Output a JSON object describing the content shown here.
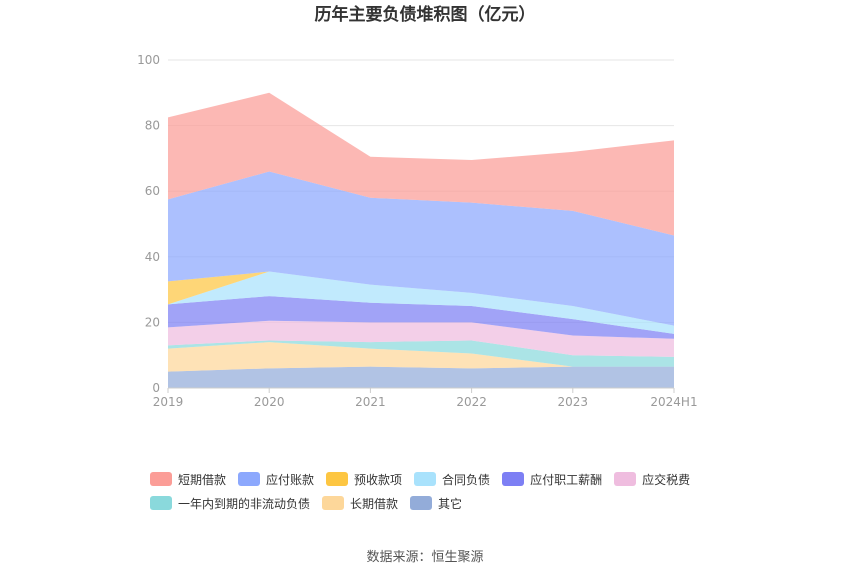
{
  "title": "历年主要负债堆积图（亿元）",
  "source": "数据来源：恒生聚源",
  "chart_data": {
    "type": "area",
    "stacked": true,
    "title": "历年主要负债堆积图（亿元）",
    "categories": [
      "2019",
      "2020",
      "2021",
      "2022",
      "2023",
      "2024H1"
    ],
    "ylim": [
      0,
      100
    ],
    "yticks": [
      0,
      20,
      40,
      60,
      80,
      100
    ],
    "grid": true,
    "legend_position": "bottom",
    "series": [
      {
        "name": "短期借款",
        "color": "#fb9d97",
        "values": [
          25,
          24,
          12.5,
          13,
          18,
          29
        ]
      },
      {
        "name": "应付账款",
        "color": "#8ca8fd",
        "values": [
          25,
          30.5,
          26.5,
          27.5,
          29,
          27.5
        ]
      },
      {
        "name": "预收款项",
        "color": "#fdc642",
        "values": [
          7,
          0,
          0,
          0,
          0,
          0
        ]
      },
      {
        "name": "合同负债",
        "color": "#a9e2fc",
        "values": [
          0,
          7.5,
          5.5,
          4,
          4,
          2.5
        ]
      },
      {
        "name": "应付职工薪酬",
        "color": "#7d7ff4",
        "values": [
          7,
          7.5,
          6,
          5,
          5,
          1.5
        ]
      },
      {
        "name": "应交税费",
        "color": "#efbddf",
        "values": [
          5.5,
          6,
          6,
          5.5,
          6,
          5.5
        ]
      },
      {
        "name": "一年内到期的非流动负债",
        "color": "#8ad9dc",
        "values": [
          1,
          0.5,
          2,
          4,
          3.5,
          3
        ]
      },
      {
        "name": "长期借款",
        "color": "#fdd79a",
        "values": [
          7,
          8,
          5.5,
          4.5,
          0,
          0
        ]
      },
      {
        "name": "其它",
        "color": "#93acd9",
        "values": [
          5,
          6,
          6.5,
          6,
          6.5,
          6.5
        ]
      }
    ]
  }
}
